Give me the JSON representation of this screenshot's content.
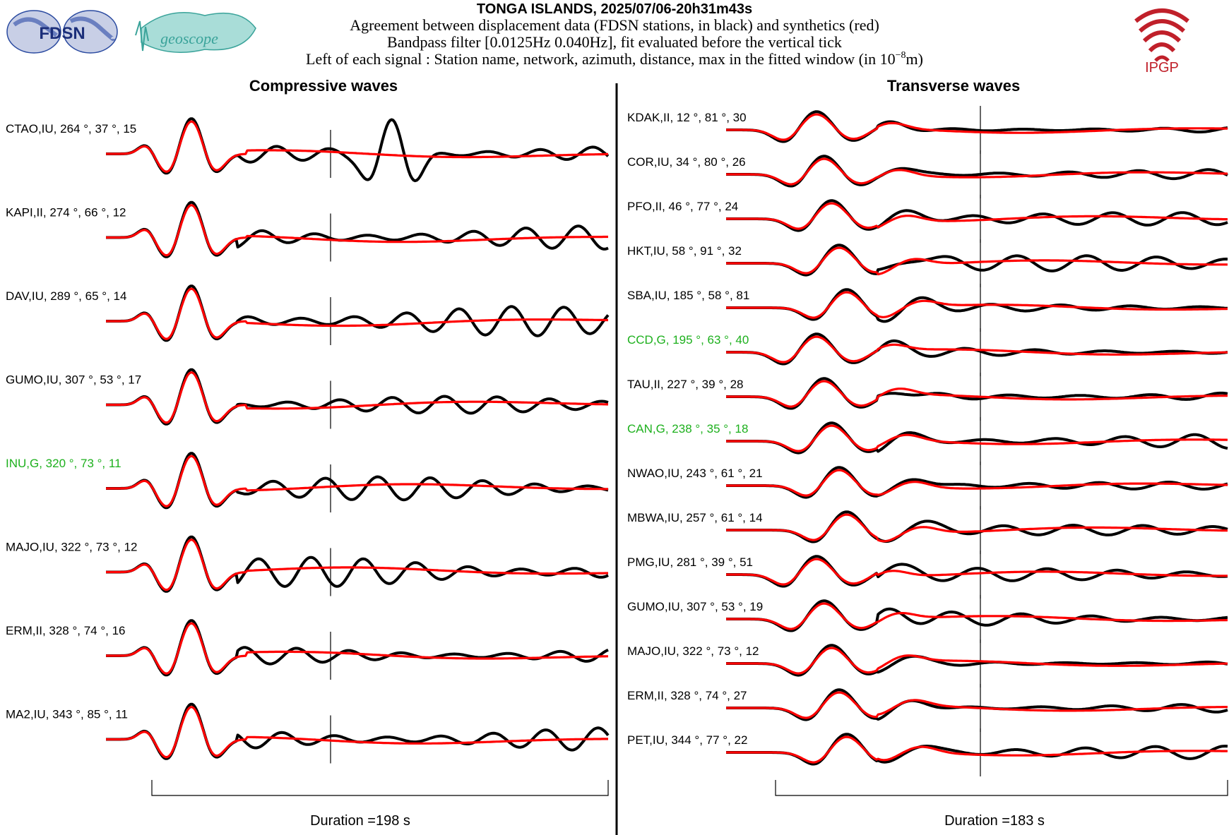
{
  "header": {
    "title": "TONGA ISLANDS, 2025/07/06-20h31m43s",
    "line1": "Agreement between displacement data (FDSN stations, in black) and synthetics (red)",
    "line2": "Bandpass filter [0.0125Hz 0.040Hz], fit evaluated before the vertical tick",
    "line3_prefix": "Left of each signal : Station name, network, azimuth, distance, max in the fitted window (in 10",
    "line3_exp": "−8",
    "line3_suffix": "m)"
  },
  "logos": {
    "fdsn": "FDSN",
    "geoscope": "geoscope",
    "ipgp": "IPGP",
    "ipgp_color": "#c0202a",
    "fdsn_color": "#2a4aa0",
    "geoscope_color": "#3aa39a"
  },
  "colors": {
    "data": "#000000",
    "synthetic": "#ff0000",
    "highlight_label": "#1db01d",
    "label": "#000000"
  },
  "chart_data": [
    {
      "type": "line",
      "title": "Compressive waves",
      "duration_label": "Duration =198 s",
      "duration_s": 198,
      "stations": [
        {
          "label": "CTAO,IU, 264 °, 37 °, 15",
          "highlight": false
        },
        {
          "label": "KAPI,II, 274 °, 66 °, 12",
          "highlight": false
        },
        {
          "label": "DAV,IU, 289 °, 65 °, 14",
          "highlight": false
        },
        {
          "label": "GUMO,IU, 307 °, 53 °, 17",
          "highlight": false
        },
        {
          "label": "INU,G, 320 °, 73 °, 11",
          "highlight": true
        },
        {
          "label": "MAJO,IU, 322 °, 73 °, 12",
          "highlight": false
        },
        {
          "label": "ERM,II, 328 °, 74 °, 16",
          "highlight": false
        },
        {
          "label": "MA2,IU, 343 °, 85 °, 11",
          "highlight": false
        }
      ]
    },
    {
      "type": "line",
      "title": "Transverse waves",
      "duration_label": "Duration =183 s",
      "duration_s": 183,
      "stations": [
        {
          "label": "KDAK,II, 12 °, 81 °, 30",
          "highlight": false
        },
        {
          "label": "COR,IU, 34 °, 80 °, 26",
          "highlight": false
        },
        {
          "label": "PFO,II, 46 °, 77 °, 24",
          "highlight": false
        },
        {
          "label": "HKT,IU, 58 °, 91 °, 32",
          "highlight": false
        },
        {
          "label": "SBA,IU, 185 °, 58 °, 81",
          "highlight": false
        },
        {
          "label": "CCD,G, 195 °, 63 °, 40",
          "highlight": true
        },
        {
          "label": "TAU,II, 227 °, 39 °, 28",
          "highlight": false
        },
        {
          "label": "CAN,G, 238 °, 35 °, 18",
          "highlight": true
        },
        {
          "label": "NWAO,IU, 243 °, 61 °, 21",
          "highlight": false
        },
        {
          "label": "MBWA,IU, 257 °, 61 °, 14",
          "highlight": false
        },
        {
          "label": "PMG,IU, 281 °, 39 °, 51",
          "highlight": false
        },
        {
          "label": "GUMO,IU, 307 °, 53 °, 19",
          "highlight": false
        },
        {
          "label": "MAJO,IU, 322 °, 73 °, 12",
          "highlight": false
        },
        {
          "label": "ERM,II, 328 °, 74 °, 27",
          "highlight": false
        },
        {
          "label": "PET,IU, 344 °, 77 °, 22",
          "highlight": false
        }
      ]
    }
  ]
}
